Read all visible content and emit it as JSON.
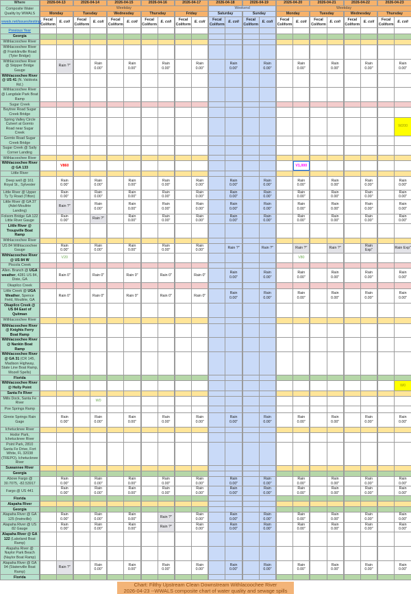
{
  "header": {
    "where": "Where",
    "title": "Composite Water Quality by WWALS",
    "link": "wwals.net/issues/testing/",
    "dates": [
      "2026-04-13",
      "2026-04-14",
      "2026-04-15",
      "2026-04-16",
      "2026-04-17",
      "2026-04-18",
      "2026-04-19",
      "2026-04-20",
      "2026-04-21",
      "2026-04-22",
      "2026-04-23"
    ],
    "days": [
      "Monday",
      "Tuesday",
      "Wednesday",
      "Thursday",
      "Friday",
      "Saturday",
      "Sunday",
      "Monday",
      "Tuesday",
      "Wednesday",
      "Thursday"
    ],
    "weekend_flags": [
      false,
      false,
      false,
      false,
      false,
      true,
      true,
      false,
      false,
      false,
      false
    ],
    "groups": [
      {
        "label": "Weekday",
        "days": 5
      },
      {
        "label": "Weekend",
        "days": 2
      },
      {
        "label": "Weekday",
        "days": 4
      }
    ],
    "col_fecal": "Fecal Coliform",
    "col_ecoli": "E. coli"
  },
  "colors": {
    "header": "#f6b26b",
    "label": "#b7e1cd",
    "weekend": "#c9daf8",
    "green": "#b6d7a8",
    "yellow": "#ffe599",
    "pink": "#f4cccc",
    "red": "#ff0000",
    "magenta": "#ff00ff",
    "sample_green": "#6aa84f",
    "highlight": "#ffff00"
  },
  "rows": [
    {
      "parts": [
        {
          "t": "Previous Year",
          "link": true
        }
      ],
      "band": null
    },
    {
      "parts": [
        {
          "t": "Georgia",
          "b": true
        }
      ],
      "band": "green"
    },
    {
      "parts": [
        {
          "t": "Withlacoochee River"
        }
      ],
      "band": "yellow"
    },
    {
      "parts": [
        {
          "t": "Withlacoochee River @ Franklinville Road (Tyler Bridge)"
        }
      ]
    },
    {
      "parts": [
        {
          "t": "Withlacoochee River @ Skipper Bridge Gauge"
        }
      ],
      "rain": [
        "Rain ?\"",
        "Rain 0.00\"",
        "Rain 0.00\"",
        "Rain 0.00\"",
        "Rain 0.00\"",
        "Rain 0.00\"",
        "Rain 0.00\"",
        "Rain 0.00\"",
        "Rain 0.00\"",
        "Rain 0.00\"",
        "Rain 0.00\""
      ]
    },
    {
      "parts": [
        {
          "t": "Withlacoochee River @ US 41",
          "b": true
        },
        {
          "t": " (N. Valdosta Rd.)"
        }
      ]
    },
    {
      "parts": [
        {
          "t": "Withlacoochee River @ Langdale Park Boat Ramp"
        }
      ]
    },
    {
      "parts": [
        {
          "t": "Sugar Creek"
        }
      ],
      "band": "pink"
    },
    {
      "parts": [
        {
          "t": "Baytree Road Sugar Creek Bridge"
        }
      ]
    },
    {
      "parts": [
        {
          "t": "Spring Valley Circle Culvert at Gornto Road near Sugar Creek"
        }
      ],
      "samples": [
        {
          "day": 10,
          "col": "e",
          "text": "W200",
          "style": "hl"
        }
      ]
    },
    {
      "parts": [
        {
          "t": "Gornto Road Sugar Creek Bridge"
        }
      ]
    },
    {
      "parts": [
        {
          "t": "Sugar Creek @ Sally Corner Landing"
        }
      ]
    },
    {
      "parts": [
        {
          "t": "Withlacoochee River"
        }
      ],
      "band": "yellow"
    },
    {
      "parts": [
        {
          "t": "Withlacoochee River @ GA 133",
          "b": true
        }
      ],
      "samples": [
        {
          "day": 0,
          "col": "e",
          "text": "V860",
          "style": "red"
        },
        {
          "day": 7,
          "col": "e",
          "text": "V1,000",
          "style": "magenta"
        }
      ]
    },
    {
      "parts": [
        {
          "t": "Little River"
        }
      ],
      "band": "yellow"
    },
    {
      "parts": [
        {
          "t": "Deep well @ 161 Royal St., Sylvester"
        }
      ],
      "rain": [
        "Rain 0.00\"",
        "Rain 0.00\"",
        "Rain 0.00\"",
        "Rain 0.00\"",
        "Rain 0.00\"",
        "Rain 0.00\"",
        "Rain 0.00\"",
        "Rain 0.00\"",
        "Rain 0.00\"",
        "Rain 0.00\"",
        "Rain 0.00\""
      ]
    },
    {
      "parts": [
        {
          "t": "Little River @ Upper Ty Ty Road (Tifton)"
        }
      ],
      "rain": [
        "Rain 0.00\"",
        "Rain 0.00\"",
        "Rain 0.00\"",
        "Rain 0.00\"",
        "Rain 0.00\"",
        "Rain 0.00\"",
        "Rain 0.00\"",
        "Rain 0.00\"",
        "Rain 0.00\"",
        "Rain 0.00\"",
        "Rain 0.00\""
      ]
    },
    {
      "parts": [
        {
          "t": "Little River @ GA 37 (Adel-Moultrie Landing)"
        }
      ],
      "rain": [
        "Rain ?\"",
        "Rain 0.00\"",
        "Rain 0.00\"",
        "Rain 0.00\"",
        "Rain 0.00\"",
        "Rain 0.00\"",
        "Rain 0.00\"",
        "Rain 0.00\"",
        "Rain 0.00\"",
        "Rain 0.00\"",
        "Rain 0.00\""
      ]
    },
    {
      "parts": [
        {
          "t": "Folsom Bridge GA 122 Little River Gauge"
        }
      ],
      "rain": [
        "Rain 0.00\"",
        "Rain ?\"",
        "Rain 0.00\"",
        "Rain 0.00\"",
        "Rain 0.00\"",
        "Rain 0.00\"",
        "Rain 0.00\"",
        "Rain 0.00\"",
        "Rain 0.00\"",
        "Rain 0.00\"",
        "Rain 0.00\""
      ]
    },
    {
      "parts": [
        {
          "t": "Little River @ Troupville Boat Ramp",
          "b": true
        }
      ]
    },
    {
      "parts": [
        {
          "t": "Withlacoochee River"
        }
      ],
      "band": "yellow"
    },
    {
      "parts": [
        {
          "t": "US 84 Withlacoochee Gauge"
        }
      ],
      "rain": [
        "Rain 0.00\"",
        "Rain 0.00\"",
        "Rain 0.00\"",
        "Rain 0.00\"",
        "Rain 0.00\"",
        "Rain ?\"",
        "Rain ?\"",
        "Rain ?\"",
        "Rain ?\"",
        "Rain Exp\"",
        "Rain Exp\""
      ]
    },
    {
      "parts": [
        {
          "t": "Withlacoochee River @ US 84 W",
          "b": true
        }
      ],
      "samples": [
        {
          "day": 0,
          "col": "e",
          "text": "V20",
          "style": "green"
        },
        {
          "day": 7,
          "col": "e",
          "text": "V80",
          "style": "green"
        }
      ]
    },
    {
      "parts": [
        {
          "t": "Piscola Creek"
        }
      ],
      "band": "pink"
    },
    {
      "parts": [
        {
          "t": "Allen. Branch @ "
        },
        {
          "t": "UGA weather",
          "b": true
        },
        {
          "t": ", 4281 US 84, Dixie, GA"
        }
      ],
      "rain": [
        "Rain 0\"",
        "Rain 0\"",
        "Rain 0\"",
        "Rain 0\"",
        "Rain 0\"",
        "Rain 0.00\"",
        "Rain 0.00\"",
        "Rain 0.00\"",
        "Rain 0.00\"",
        "Rain 0.00\"",
        "Rain 0.00\""
      ]
    },
    {
      "parts": [
        {
          "t": "Okapilco Creek"
        }
      ],
      "band": "pink"
    },
    {
      "parts": [
        {
          "t": "Little Creek @ "
        },
        {
          "t": "UGA Weather",
          "b": true
        },
        {
          "t": ", Spence Field, Moultrie, GA"
        }
      ],
      "rain": [
        "Rain 0\"",
        "Rain 0\"",
        "Rain 0\"",
        "Rain 0\"",
        "Rain 0\"",
        "Rain 0.00\"",
        "Rain 0.00\"",
        "Rain 0.00\"",
        "Rain 0.00\"",
        "Rain 0.00\"",
        "Rain 0.00\""
      ]
    },
    {
      "parts": [
        {
          "t": "Okapilco Creek @ US 84 East of Quitman",
          "b": true
        }
      ]
    },
    {
      "parts": [
        {
          "t": "Withlacoochee River"
        }
      ],
      "band": "yellow"
    },
    {
      "parts": [
        {
          "t": "Withlacoochee River @ Knights Ferry Boat Ramp",
          "b": true
        }
      ]
    },
    {
      "parts": [
        {
          "t": "Withlacoochee River @ Nankin Boat Ramp",
          "b": true
        }
      ]
    },
    {
      "parts": [
        {
          "t": "Withlacoochee River @ GA 31",
          "b": true
        },
        {
          "t": " (CR 145, Madison Highway, State Line Boat Ramp, Mozell Spells)"
        }
      ]
    },
    {
      "parts": [
        {
          "t": "Florida",
          "b": true
        }
      ],
      "band": "green"
    },
    {
      "parts": [
        {
          "t": "Withlacoochee River @ Holly Point",
          "b": true
        }
      ],
      "samples": [
        {
          "day": 10,
          "col": "e",
          "text": "W0",
          "style": "hl"
        }
      ]
    },
    {
      "parts": [
        {
          "t": "Santa Fe River",
          "b": true
        }
      ],
      "band": "yellow"
    },
    {
      "parts": [
        {
          "t": "Mills Dock, Santa Fe River"
        }
      ],
      "samples": [
        {
          "day": 1,
          "col": "e",
          "text": "W0",
          "style": "green"
        }
      ]
    },
    {
      "parts": [
        {
          "t": "Poe Springs Ramp"
        }
      ]
    },
    {
      "parts": [
        {
          "t": "Ginnie Springs Rain Gage"
        }
      ],
      "rain": [
        "Rain 0.00\"",
        "Rain 0.00\"",
        "Rain 0.00\"",
        "Rain 0.00\"",
        "Rain 0.00\"",
        "Rain 0.00\"",
        "Rain 0.00\"",
        "Rain 0.00\"",
        "Rain 0.00\"",
        "Rain 0.00\"",
        "Rain 0.00\""
      ]
    },
    {
      "parts": [
        {
          "t": "Ichetucknee River"
        }
      ],
      "band": "yellow"
    },
    {
      "parts": [
        {
          "t": "Hodor Park, Ichetucknee River"
        }
      ]
    },
    {
      "parts": [
        {
          "t": "Point Park, 2810 Santa Fe Drive, Fort White, FL 32038 (TREPO), Ichetucknee River"
        }
      ]
    },
    {
      "parts": [
        {
          "t": "Suwannee River",
          "b": true
        }
      ],
      "band": "yellow"
    },
    {
      "parts": [
        {
          "t": "Georgia",
          "b": true
        }
      ],
      "band": "green"
    },
    {
      "parts": [
        {
          "t": "Above Fargo @ 30.7075, -82.53917"
        }
      ],
      "rain": [
        "Rain 0.00\"",
        "Rain 0.00\"",
        "Rain 0.00\"",
        "Rain 0.00\"",
        "Rain 0.00\"",
        "Rain 0.00\"",
        "Rain 0.00\"",
        "Rain 0.00\"",
        "Rain 0.00\"",
        "Rain 0.00\"",
        "Rain 0.00\""
      ]
    },
    {
      "parts": [
        {
          "t": "Fargo @ US 441"
        }
      ],
      "rain": [
        "Rain 0.00\"",
        "Rain 0.00\"",
        "Rain 0.00\"",
        "Rain 0.00\"",
        "Rain 0.00\"",
        "Rain 0.00\"",
        "Rain 0.00\"",
        "Rain 0.00\"",
        "Rain 0.00\"",
        "Rain 0.00\"",
        "Rain 0.00\""
      ]
    },
    {
      "parts": [
        {
          "t": "Florida",
          "b": true
        }
      ],
      "band": "green"
    },
    {
      "parts": [
        {
          "t": "Alapaha River",
          "b": true
        }
      ],
      "band": "yellow"
    },
    {
      "parts": [
        {
          "t": "Georgia",
          "b": true
        }
      ],
      "band": "green"
    },
    {
      "parts": [
        {
          "t": "Alapaha River @ GA 125 (Irwinville)"
        }
      ],
      "rain": [
        "Rain 0.00\"",
        "Rain 0.00\"",
        "Rain 0.00\"",
        "Rain ?\"",
        "Rain 0.00\"",
        "Rain 0.00\"",
        "Rain 0.00\"",
        "Rain 0.00\"",
        "Rain 0.00\"",
        "Rain 0.00\"",
        "Rain 0.00\""
      ]
    },
    {
      "parts": [
        {
          "t": "Alapaha River @ US 82 Gauge"
        }
      ],
      "rain": [
        "Rain 0.00\"",
        "Rain 0.00\"",
        "Rain 0.00\"",
        "Rain ?\"",
        "Rain 0.00\"",
        "Rain 0.00\"",
        "Rain 0.00\"",
        "Rain 0.00\"",
        "Rain 0.00\"",
        "Rain 0.00\"",
        "Rain 0.00\""
      ]
    },
    {
      "parts": [
        {
          "t": "Alapaha River @ GA 122",
          "b": true
        },
        {
          "t": " (Lakeland Boat Ramp)"
        }
      ]
    },
    {
      "parts": [
        {
          "t": "Alapaha River @ Naylor Park Beach (Naylor Boat Ramp)"
        }
      ]
    },
    {
      "parts": [
        {
          "t": "Alapaha River @ GA 94 (Statenville Boat Ramp)"
        }
      ],
      "rain": [
        "Rain ?\"",
        "Rain 0.00\"",
        "Rain 0.00\"",
        "Rain 0.00\"",
        "Rain 0.00\"",
        "Rain 0.00\"",
        "Rain 0.00\"",
        "Rain 0.00\"",
        "Rain 0.00\"",
        "Rain 0.00\"",
        "Rain 0.00\""
      ]
    },
    {
      "parts": [
        {
          "t": "Florida",
          "b": true
        }
      ],
      "band": "green"
    }
  ],
  "footer": {
    "line1": "Chart: Filthy Upstream Clean Downstream Withlacoochee River",
    "line2": "2026-04-23 --WWALS composite chart of water quality and sewage spills"
  }
}
